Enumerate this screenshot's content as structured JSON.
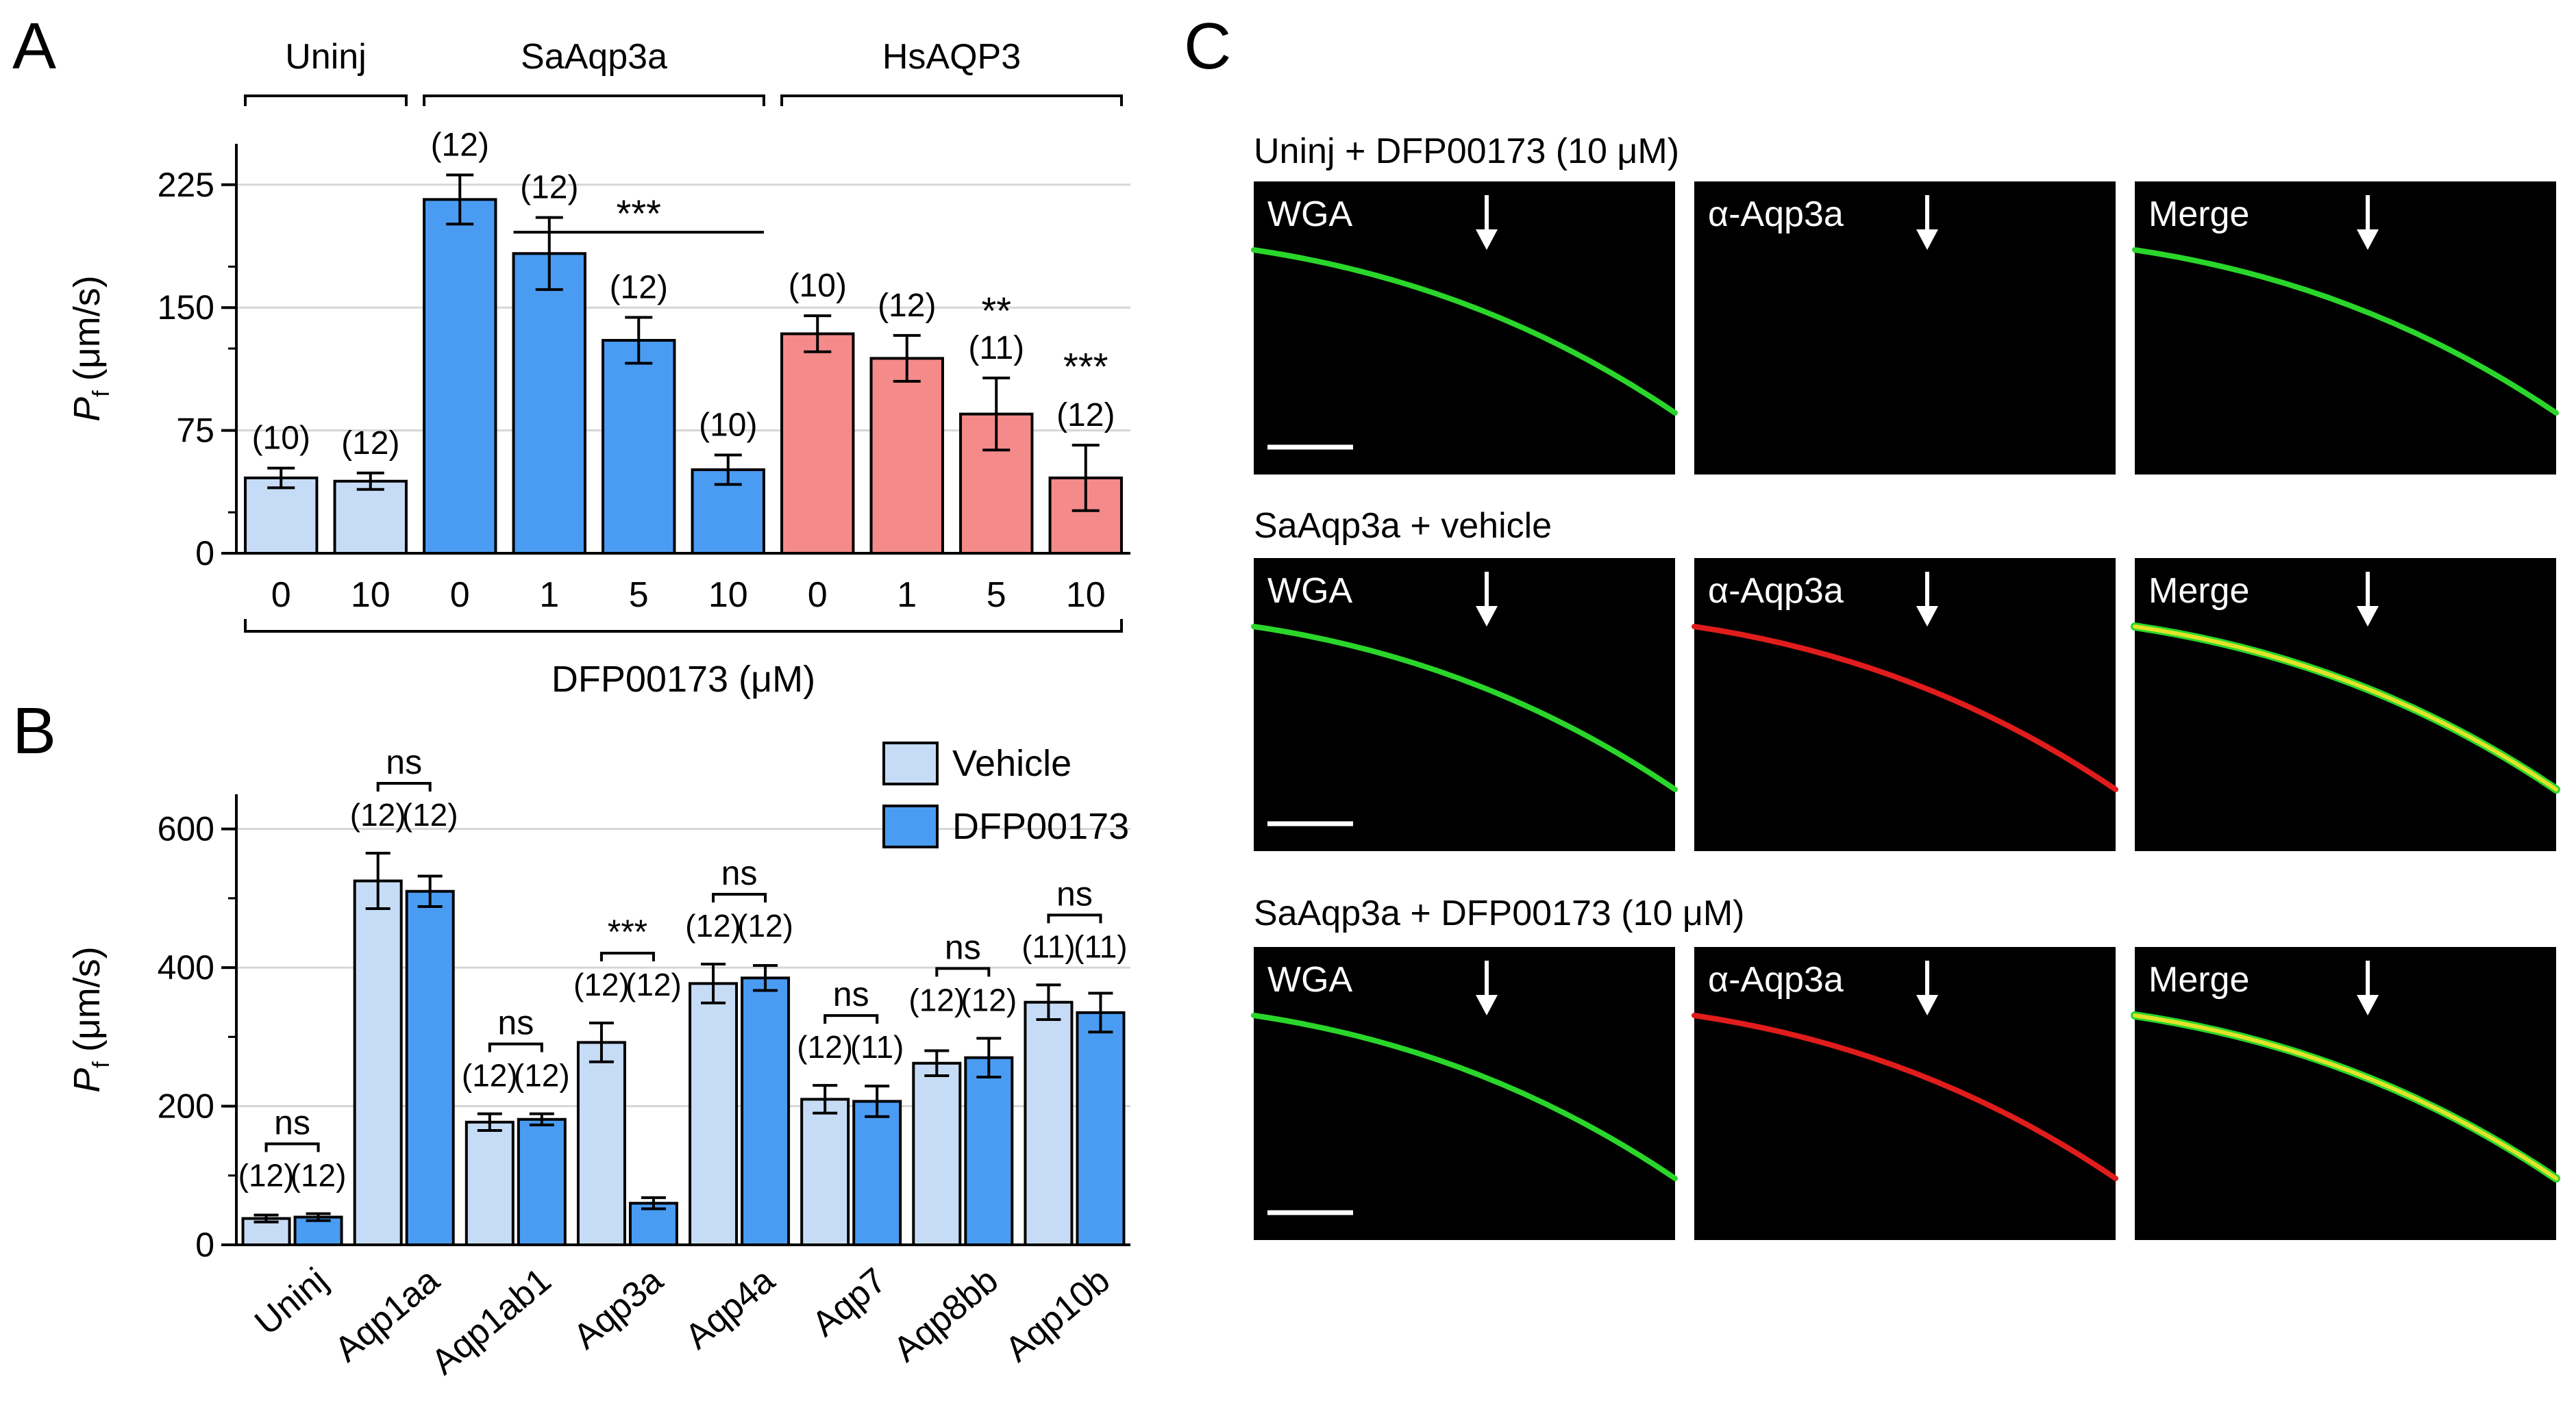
{
  "panel_letters": {
    "a": "A",
    "b": "B",
    "c": "C"
  },
  "colors": {
    "light_blue": "#c6dcf6",
    "blue": "#4a9cf3",
    "salmon": "#f58a8a",
    "bar_stroke": "#000000",
    "grid": "#d6d6d6",
    "green": "#2ad62a",
    "red": "#e01c1c",
    "yellow": "#e2e22a",
    "micro_bg": "#000000"
  },
  "chart_data": [
    {
      "type": "bar",
      "panel": "A",
      "ylabel_italic": "P",
      "ylabel_sub": "f",
      "ylabel_unit": "(μm/s)",
      "xlabel": "DFP00173 (μM)",
      "ylim": [
        0,
        250
      ],
      "yticks": [
        0,
        75,
        150,
        225
      ],
      "grid": true,
      "groups": [
        {
          "label": "Uninj",
          "from": 0,
          "to": 1
        },
        {
          "label": "SaAqp3a",
          "from": 2,
          "to": 5
        },
        {
          "label": "HsAQP3",
          "from": 6,
          "to": 9
        }
      ],
      "categories": [
        "0",
        "10",
        "0",
        "1",
        "5",
        "10",
        "0",
        "1",
        "5",
        "10"
      ],
      "values": [
        46,
        44,
        216,
        183,
        130,
        51,
        134,
        119,
        85,
        46
      ],
      "errors": [
        6,
        5,
        15,
        22,
        14,
        9,
        11,
        14,
        22,
        20
      ],
      "n_labels": [
        "(10)",
        "(12)",
        "(12)",
        "(12)",
        "(12)",
        "(10)",
        "(10)",
        "(12)",
        "(11)",
        "(12)"
      ],
      "bar_colors": [
        "light_blue",
        "light_blue",
        "blue",
        "blue",
        "blue",
        "blue",
        "salmon",
        "salmon",
        "salmon",
        "salmon"
      ],
      "annotations": [
        {
          "text": "***",
          "type": "bracket",
          "from": 3,
          "to": 5,
          "y": 196
        },
        {
          "text": "**",
          "type": "above",
          "bar": 8,
          "y": 140
        },
        {
          "text": "***",
          "type": "above",
          "bar": 9,
          "y": 106
        }
      ]
    },
    {
      "type": "bar",
      "panel": "B",
      "ylabel_italic": "P",
      "ylabel_sub": "f",
      "ylabel_unit": "(μm/s)",
      "ylim": [
        0,
        650
      ],
      "yticks": [
        0,
        200,
        400,
        600
      ],
      "grid": true,
      "legend": {
        "placement": "top-right",
        "entries": [
          "Vehicle",
          "DFP00173"
        ]
      },
      "categories": [
        "Uninj",
        "Aqp1aa",
        "Aqp1ab1",
        "Aqp3a",
        "Aqp4a",
        "Aqp7",
        "Aqp8bb",
        "Aqp10b"
      ],
      "series": [
        {
          "name": "Vehicle",
          "color": "light_blue",
          "values": [
            38,
            525,
            177,
            292,
            377,
            210,
            262,
            350
          ],
          "errors": [
            5,
            40,
            12,
            28,
            28,
            20,
            18,
            25
          ],
          "n_labels": [
            "(12)",
            "(12)",
            "(12)",
            "(12)",
            "(12)",
            "(12)",
            "(12)",
            "(11)"
          ]
        },
        {
          "name": "DFP00173",
          "color": "blue",
          "values": [
            40,
            510,
            181,
            60,
            385,
            207,
            270,
            335
          ],
          "errors": [
            5,
            22,
            8,
            8,
            18,
            22,
            28,
            28
          ],
          "n_labels": [
            "(12)",
            "(12)",
            "(12)",
            "(12)",
            "(12)",
            "(11)",
            "(12)",
            "(11)"
          ]
        }
      ],
      "significance": [
        "ns",
        "ns",
        "ns",
        "***",
        "ns",
        "ns",
        "ns",
        "ns"
      ]
    }
  ],
  "micrographs": {
    "rows": [
      {
        "title": "Uninj + DFP00173 (10 μM)",
        "panels": [
          "WGA",
          "α-Aqp3a",
          "Merge"
        ],
        "channels": [
          "green",
          "none",
          "green"
        ]
      },
      {
        "title": "SaAqp3a + vehicle",
        "panels": [
          "WGA",
          "α-Aqp3a",
          "Merge"
        ],
        "channels": [
          "green",
          "red",
          "yellow"
        ]
      },
      {
        "title": "SaAqp3a + DFP00173 (10 μM)",
        "panels": [
          "WGA",
          "α-Aqp3a",
          "Merge"
        ],
        "channels": [
          "green",
          "red",
          "yellow"
        ]
      }
    ]
  }
}
